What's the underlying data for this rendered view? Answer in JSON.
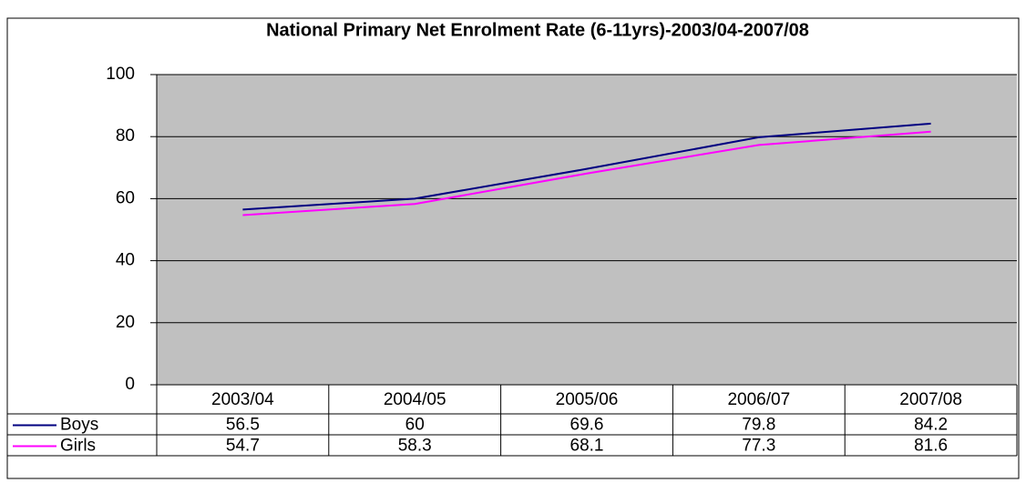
{
  "chart_data": {
    "type": "line",
    "title": "National Primary Net Enrolment Rate (6-11yrs)-2003/04-2007/08",
    "categories": [
      "2003/04",
      "2004/05",
      "2005/06",
      "2006/07",
      "2007/08"
    ],
    "series": [
      {
        "name": "Boys",
        "color": "#000080",
        "values": [
          56.5,
          60,
          69.6,
          79.8,
          84.2
        ]
      },
      {
        "name": "Girls",
        "color": "#ff00ff",
        "values": [
          54.7,
          58.3,
          68.1,
          77.3,
          81.6
        ]
      }
    ],
    "ylim": [
      0,
      100
    ],
    "yticks": [
      0,
      20,
      40,
      60,
      80,
      100
    ],
    "grid": true,
    "data_table": true
  }
}
